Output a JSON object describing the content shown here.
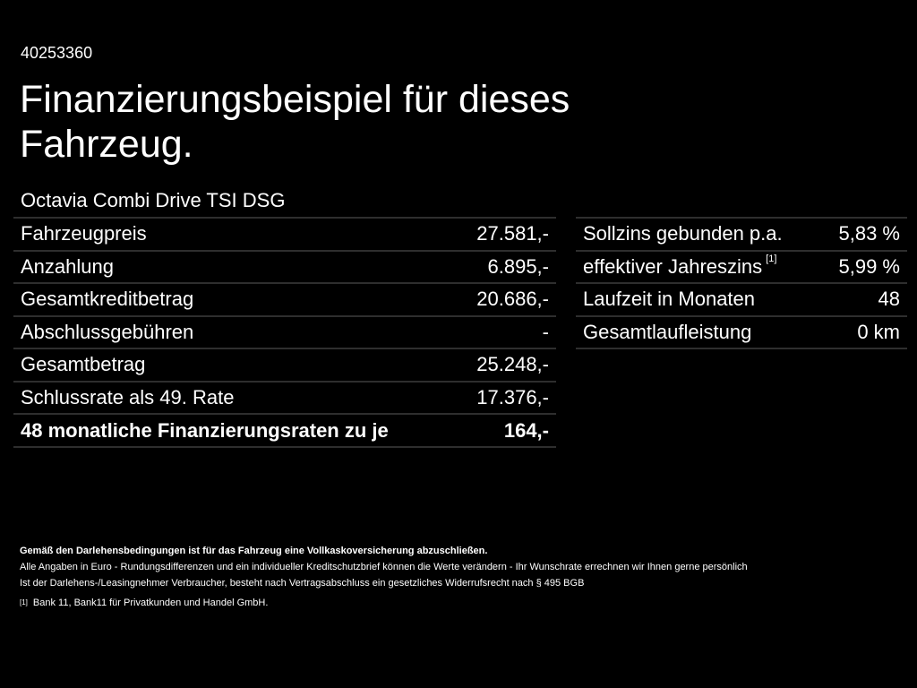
{
  "header": {
    "reference": "40253360",
    "title": "Finanzierungsbeispiel für dieses Fahrzeug.",
    "model": "Octavia Combi Drive TSI DSG"
  },
  "left_table": [
    {
      "label": "Fahrzeugpreis",
      "value": "27.581,-"
    },
    {
      "label": "Anzahlung",
      "value": "6.895,-"
    },
    {
      "label": "Gesamtkreditbetrag",
      "value": "20.686,-"
    },
    {
      "label": "Abschlussgebühren",
      "value": "-"
    },
    {
      "label": "Gesamtbetrag",
      "value": "25.248,-"
    },
    {
      "label": "Schlussrate als 49. Rate",
      "value": "17.376,-"
    },
    {
      "label": "48 monatliche Finanzierungsraten zu je",
      "value": "164,-"
    }
  ],
  "right_table": [
    {
      "label": "Sollzins gebunden p.a.",
      "value": "5,83 %"
    },
    {
      "label": "effektiver Jahreszins",
      "footnote": "[1]",
      "value": "5,99 %"
    },
    {
      "label": "Laufzeit in Monaten",
      "value": "48"
    },
    {
      "label": "Gesamtlaufleistung",
      "value": "0 km"
    }
  ],
  "footer": {
    "bold_note": "Gemäß den Darlehensbedingungen ist für das Fahrzeug eine Vollkaskoversicherung abzuschließen.",
    "line1": "Alle Angaben in Euro - Rundungsdifferenzen und ein individueller Kreditschutzbrief können die Werte verändern - Ihr Wunschrate errechnen wir Ihnen gerne persönlich",
    "line2": "Ist der Darlehens-/Leasingnehmer Verbraucher, besteht nach Vertragsabschluss ein gesetzliches Widerrufsrecht nach § 495 BGB",
    "footnote_marker": "[1]",
    "footnote_text": "Bank 11, Bank11 für Privatkunden und Handel GmbH."
  }
}
